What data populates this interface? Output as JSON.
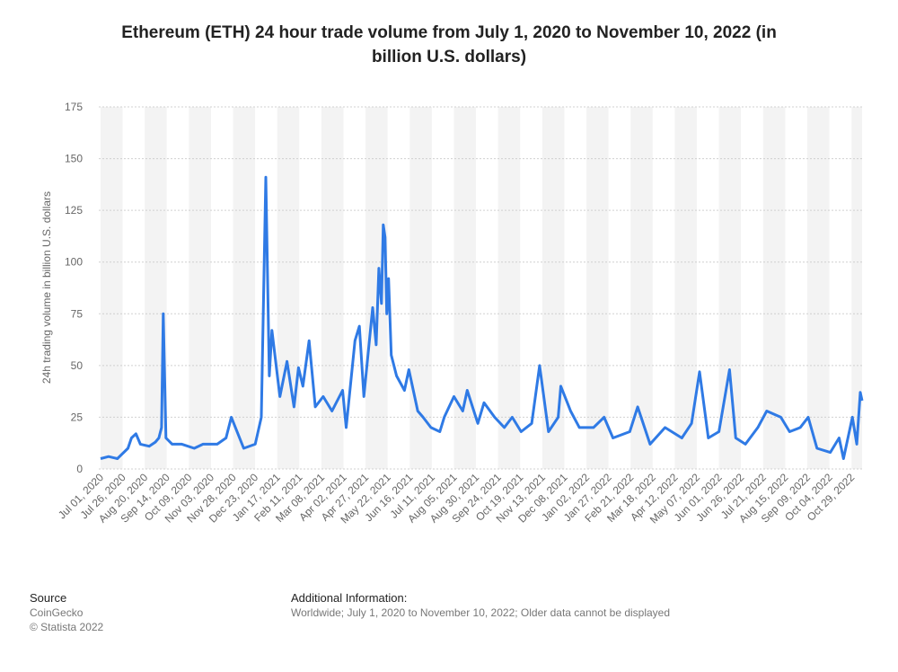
{
  "chart_data": {
    "type": "line",
    "title": "Ethereum (ETH) 24 hour trade volume from July 1, 2020 to November 10, 2022 (in billion U.S. dollars)",
    "y_label": "24h trading volume in billion U.S. dollars",
    "source_label": "Source",
    "source": "CoinGecko",
    "copyright": "© Statista 2022",
    "additional_info_label": "Additional Information:",
    "additional_info": "Worldwide; July 1, 2020 to November 10, 2022; Older data cannot be displayed",
    "xlim": [
      "Jul 01, 2020",
      "Nov 10, 2022"
    ],
    "ylim": [
      0,
      175
    ],
    "yticks": [
      0,
      25,
      50,
      75,
      100,
      125,
      150,
      175
    ],
    "xticks": [
      "Jul 01, 2020",
      "Jul 26, 2020",
      "Aug 20, 2020",
      "Sep 14, 2020",
      "Oct 09, 2020",
      "Nov 03, 2020",
      "Nov 28, 2020",
      "Dec 23, 2020",
      "Jan 17, 2021",
      "Feb 11, 2021",
      "Mar 08, 2021",
      "Apr 02, 2021",
      "Apr 27, 2021",
      "May 22, 2021",
      "Jun 16, 2021",
      "Jul 11, 2021",
      "Aug 05, 2021",
      "Aug 30, 2021",
      "Sep 24, 2021",
      "Oct 19, 2021",
      "Nov 13, 2021",
      "Dec 08, 2021",
      "Jan 02, 2022",
      "Jan 27, 2022",
      "Feb 21, 2022",
      "Mar 18, 2022",
      "Apr 12, 2022",
      "May 07, 2022",
      "Jun 01, 2022",
      "Jun 26, 2022",
      "Jul 21, 2022",
      "Aug 15, 2022",
      "Sep 09, 2022",
      "Oct 04, 2022",
      "Oct 29, 2022"
    ],
    "grid": true,
    "series": [
      {
        "name": "24h trade volume",
        "color": "#2f7ae5",
        "x": [
          "Jul 01, 2020",
          "Jul 10, 2020",
          "Jul 20, 2020",
          "Aug 01, 2020",
          "Aug 05, 2020",
          "Aug 10, 2020",
          "Aug 15, 2020",
          "Aug 25, 2020",
          "Sep 01, 2020",
          "Sep 05, 2020",
          "Sep 08, 2020",
          "Sep 10, 2020",
          "Sep 13, 2020",
          "Sep 20, 2020",
          "Oct 01, 2020",
          "Oct 15, 2020",
          "Oct 25, 2020",
          "Nov 10, 2020",
          "Nov 20, 2020",
          "Nov 26, 2020",
          "Dec 10, 2020",
          "Dec 23, 2020",
          "Dec 30, 2020",
          "Jan 04, 2021",
          "Jan 08, 2021",
          "Jan 11, 2021",
          "Jan 20, 2021",
          "Jan 28, 2021",
          "Feb 05, 2021",
          "Feb 10, 2021",
          "Feb 15, 2021",
          "Feb 22, 2021",
          "Mar 01, 2021",
          "Mar 10, 2021",
          "Mar 20, 2021",
          "Apr 01, 2021",
          "Apr 05, 2021",
          "Apr 15, 2021",
          "Apr 20, 2021",
          "Apr 25, 2021",
          "May 05, 2021",
          "May 09, 2021",
          "May 12, 2021",
          "May 15, 2021",
          "May 17, 2021",
          "May 19, 2021",
          "May 21, 2021",
          "May 23, 2021",
          "May 26, 2021",
          "Jun 01, 2021",
          "Jun 10, 2021",
          "Jun 15, 2021",
          "Jun 25, 2021",
          "Jul 01, 2021",
          "Jul 10, 2021",
          "Jul 20, 2021",
          "Jul 25, 2021",
          "Aug 05, 2021",
          "Aug 15, 2021",
          "Aug 20, 2021",
          "Sep 01, 2021",
          "Sep 08, 2021",
          "Sep 20, 2021",
          "Oct 01, 2021",
          "Oct 10, 2021",
          "Oct 20, 2021",
          "Nov 01, 2021",
          "Nov 10, 2021",
          "Nov 20, 2021",
          "Dec 01, 2021",
          "Dec 04, 2021",
          "Dec 15, 2021",
          "Dec 25, 2021",
          "Jan 10, 2022",
          "Jan 22, 2022",
          "Feb 01, 2022",
          "Feb 20, 2022",
          "Mar 01, 2022",
          "Mar 15, 2022",
          "Apr 01, 2022",
          "Apr 20, 2022",
          "May 01, 2022",
          "May 10, 2022",
          "May 20, 2022",
          "Jun 01, 2022",
          "Jun 13, 2022",
          "Jun 20, 2022",
          "Jul 01, 2022",
          "Jul 15, 2022",
          "Jul 25, 2022",
          "Aug 10, 2022",
          "Aug 20, 2022",
          "Sep 01, 2022",
          "Sep 10, 2022",
          "Sep 20, 2022",
          "Oct 05, 2022",
          "Oct 15, 2022",
          "Oct 20, 2022",
          "Oct 30, 2022",
          "Nov 04, 2022",
          "Nov 08, 2022",
          "Nov 10, 2022"
        ],
        "values": [
          5,
          6,
          5,
          10,
          15,
          17,
          12,
          11,
          13,
          15,
          20,
          75,
          15,
          12,
          12,
          10,
          12,
          12,
          15,
          25,
          10,
          12,
          25,
          141,
          45,
          67,
          35,
          52,
          30,
          49,
          40,
          62,
          30,
          35,
          28,
          38,
          20,
          62,
          69,
          35,
          78,
          60,
          97,
          80,
          118,
          112,
          75,
          92,
          55,
          45,
          38,
          48,
          28,
          25,
          20,
          18,
          25,
          35,
          28,
          38,
          22,
          32,
          25,
          20,
          25,
          18,
          22,
          50,
          18,
          25,
          40,
          28,
          20,
          20,
          25,
          15,
          18,
          30,
          12,
          20,
          15,
          22,
          47,
          15,
          18,
          48,
          15,
          12,
          20,
          28,
          25,
          18,
          20,
          25,
          10,
          8,
          15,
          5,
          25,
          12,
          37,
          33
        ]
      }
    ]
  }
}
